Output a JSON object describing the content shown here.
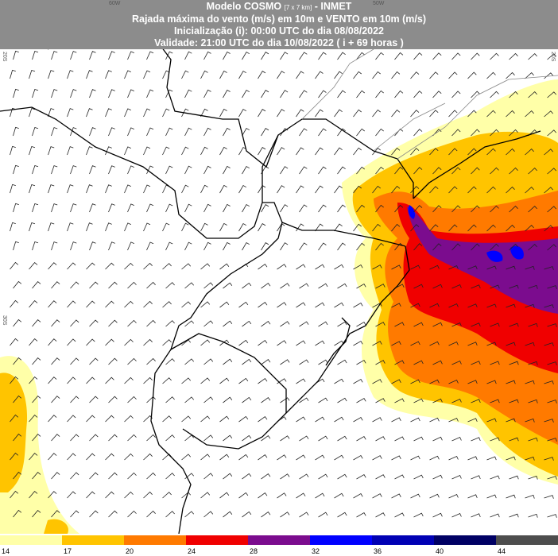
{
  "header": {
    "model": "Modelo COSMO",
    "resolution": "[7 x 7 km]",
    "source": "- INMET",
    "variable": "Rajada máxima do vento (m/s) em 10m e VENTO em 10m (m/s)",
    "initialization": "Inicialização (i): 00:00 UTC do dia 08/08/2022",
    "validity": "Validade: 21:00 UTC do dia 10/08/2022 ( i + 69 horas )"
  },
  "map_labels": {
    "lon_60w": "60W",
    "lon_50w": "50W",
    "lat_20s_left": "20S",
    "lat_20s_right": "20S",
    "lat_30s": "30S"
  },
  "legend": {
    "items": [
      {
        "label": 14,
        "color": "#ffffa8"
      },
      {
        "label": 17,
        "color": "#ffc400"
      },
      {
        "label": 20,
        "color": "#ff7a00"
      },
      {
        "label": 24,
        "color": "#f00000"
      },
      {
        "label": 28,
        "color": "#7b0c8e"
      },
      {
        "label": 32,
        "color": "#0000ff"
      },
      {
        "label": 36,
        "color": "#0000b4"
      },
      {
        "label": 40,
        "color": "#000064"
      },
      {
        "label": 44,
        "color": "#4d4d4d"
      }
    ]
  }
}
